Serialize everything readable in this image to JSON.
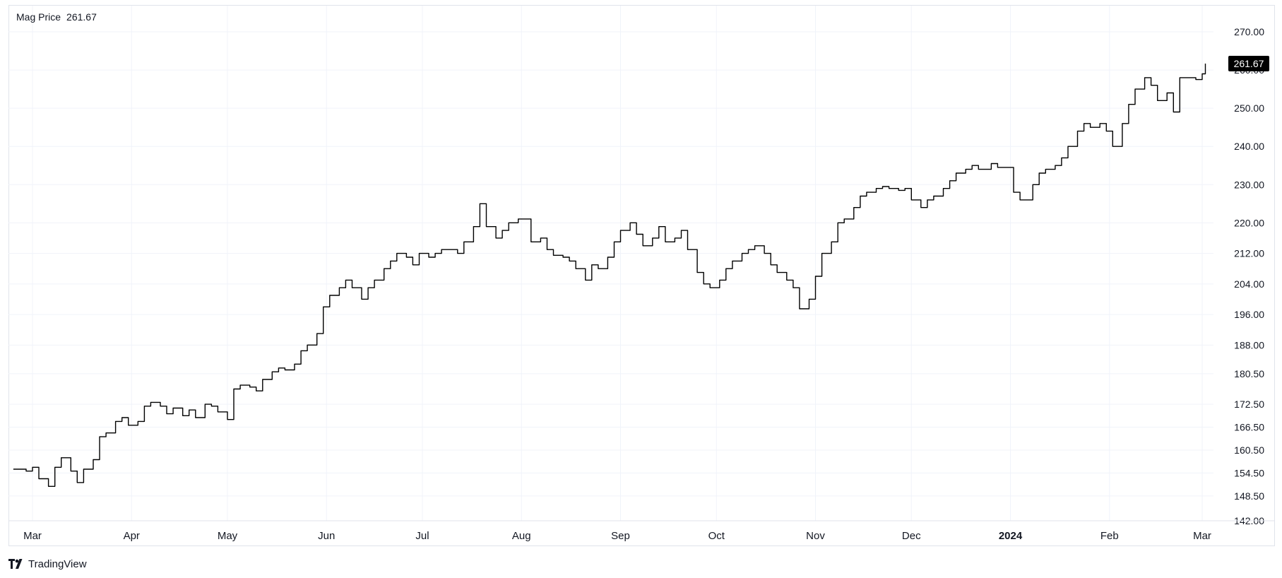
{
  "legend": {
    "name": "Mag Price",
    "value": "261.67"
  },
  "last_price_label": "261.67",
  "brand": {
    "name": "TradingView",
    "icon": "tradingview-logo-icon"
  },
  "colors": {
    "line": "#000000",
    "grid": "#f0f3fa",
    "border": "#e0e3eb",
    "text": "#131722",
    "badge_bg": "#000000",
    "badge_text": "#ffffff"
  },
  "chart_data": {
    "type": "line",
    "title": "Mag Price",
    "xlabel": "",
    "ylabel": "",
    "grid": true,
    "y_axis_side": "right",
    "ylim": [
      142.0,
      274.0
    ],
    "xlim": [
      "2023-02-23",
      "2024-03-07"
    ],
    "y_ticks": [
      "270.00",
      "260.00",
      "250.00",
      "240.00",
      "230.00",
      "220.00",
      "212.00",
      "204.00",
      "196.00",
      "188.00",
      "180.50",
      "172.50",
      "166.50",
      "160.50",
      "154.50",
      "148.50",
      "142.00"
    ],
    "x_ticks": [
      {
        "date": "2023-03-01",
        "label": "Mar",
        "bold": false
      },
      {
        "date": "2023-04-01",
        "label": "Apr",
        "bold": false
      },
      {
        "date": "2023-05-01",
        "label": "May",
        "bold": false
      },
      {
        "date": "2023-06-01",
        "label": "Jun",
        "bold": false
      },
      {
        "date": "2023-07-01",
        "label": "Jul",
        "bold": false
      },
      {
        "date": "2023-08-01",
        "label": "Aug",
        "bold": false
      },
      {
        "date": "2023-09-01",
        "label": "Sep",
        "bold": false
      },
      {
        "date": "2023-10-01",
        "label": "Oct",
        "bold": false
      },
      {
        "date": "2023-11-01",
        "label": "Nov",
        "bold": false
      },
      {
        "date": "2023-12-01",
        "label": "Dec",
        "bold": false
      },
      {
        "date": "2024-01-01",
        "label": "2024",
        "bold": true
      },
      {
        "date": "2024-02-01",
        "label": "Feb",
        "bold": false
      },
      {
        "date": "2024-03-01",
        "label": "Mar",
        "bold": false
      }
    ],
    "series": [
      {
        "points": [
          [
            "2023-02-23",
            155.5
          ],
          [
            "2023-02-27",
            155.0
          ],
          [
            "2023-03-01",
            156.0
          ],
          [
            "2023-03-03",
            153.0
          ],
          [
            "2023-03-06",
            151.0
          ],
          [
            "2023-03-08",
            156.0
          ],
          [
            "2023-03-10",
            158.5
          ],
          [
            "2023-03-13",
            155.0
          ],
          [
            "2023-03-15",
            152.0
          ],
          [
            "2023-03-17",
            155.5
          ],
          [
            "2023-03-20",
            158.0
          ],
          [
            "2023-03-22",
            164.0
          ],
          [
            "2023-03-24",
            165.0
          ],
          [
            "2023-03-27",
            168.0
          ],
          [
            "2023-03-29",
            169.0
          ],
          [
            "2023-03-31",
            167.0
          ],
          [
            "2023-04-03",
            168.0
          ],
          [
            "2023-04-05",
            172.0
          ],
          [
            "2023-04-07",
            173.0
          ],
          [
            "2023-04-10",
            172.0
          ],
          [
            "2023-04-12",
            170.0
          ],
          [
            "2023-04-14",
            171.5
          ],
          [
            "2023-04-17",
            169.5
          ],
          [
            "2023-04-19",
            171.0
          ],
          [
            "2023-04-21",
            169.0
          ],
          [
            "2023-04-24",
            172.5
          ],
          [
            "2023-04-26",
            172.0
          ],
          [
            "2023-04-28",
            170.5
          ],
          [
            "2023-05-01",
            168.5
          ],
          [
            "2023-05-03",
            176.5
          ],
          [
            "2023-05-05",
            177.5
          ],
          [
            "2023-05-08",
            177.0
          ],
          [
            "2023-05-10",
            176.0
          ],
          [
            "2023-05-12",
            179.0
          ],
          [
            "2023-05-15",
            181.0
          ],
          [
            "2023-05-17",
            182.0
          ],
          [
            "2023-05-19",
            181.5
          ],
          [
            "2023-05-22",
            183.0
          ],
          [
            "2023-05-24",
            186.5
          ],
          [
            "2023-05-26",
            188.0
          ],
          [
            "2023-05-29",
            191.0
          ],
          [
            "2023-05-31",
            198.0
          ],
          [
            "2023-06-02",
            201.0
          ],
          [
            "2023-06-05",
            203.0
          ],
          [
            "2023-06-07",
            205.0
          ],
          [
            "2023-06-09",
            203.0
          ],
          [
            "2023-06-12",
            200.0
          ],
          [
            "2023-06-14",
            203.0
          ],
          [
            "2023-06-16",
            205.0
          ],
          [
            "2023-06-19",
            208.0
          ],
          [
            "2023-06-21",
            210.0
          ],
          [
            "2023-06-23",
            212.0
          ],
          [
            "2023-06-26",
            211.0
          ],
          [
            "2023-06-28",
            209.0
          ],
          [
            "2023-06-30",
            212.0
          ],
          [
            "2023-07-03",
            211.0
          ],
          [
            "2023-07-05",
            212.0
          ],
          [
            "2023-07-07",
            213.0
          ],
          [
            "2023-07-10",
            213.0
          ],
          [
            "2023-07-12",
            212.0
          ],
          [
            "2023-07-14",
            215.0
          ],
          [
            "2023-07-17",
            219.0
          ],
          [
            "2023-07-19",
            225.0
          ],
          [
            "2023-07-21",
            219.0
          ],
          [
            "2023-07-24",
            216.0
          ],
          [
            "2023-07-26",
            218.0
          ],
          [
            "2023-07-28",
            220.0
          ],
          [
            "2023-07-31",
            221.0
          ],
          [
            "2023-08-02",
            221.0
          ],
          [
            "2023-08-04",
            215.0
          ],
          [
            "2023-08-07",
            216.0
          ],
          [
            "2023-08-09",
            213.0
          ],
          [
            "2023-08-11",
            211.5
          ],
          [
            "2023-08-14",
            211.0
          ],
          [
            "2023-08-16",
            210.0
          ],
          [
            "2023-08-18",
            208.0
          ],
          [
            "2023-08-21",
            205.0
          ],
          [
            "2023-08-23",
            209.0
          ],
          [
            "2023-08-25",
            208.0
          ],
          [
            "2023-08-28",
            211.0
          ],
          [
            "2023-08-30",
            215.0
          ],
          [
            "2023-09-01",
            218.0
          ],
          [
            "2023-09-04",
            220.0
          ],
          [
            "2023-09-06",
            217.0
          ],
          [
            "2023-09-08",
            214.0
          ],
          [
            "2023-09-11",
            216.0
          ],
          [
            "2023-09-13",
            219.0
          ],
          [
            "2023-09-15",
            215.0
          ],
          [
            "2023-09-18",
            216.0
          ],
          [
            "2023-09-20",
            218.0
          ],
          [
            "2023-09-22",
            213.0
          ],
          [
            "2023-09-25",
            207.0
          ],
          [
            "2023-09-27",
            204.0
          ],
          [
            "2023-09-29",
            203.0
          ],
          [
            "2023-10-02",
            205.0
          ],
          [
            "2023-10-04",
            208.0
          ],
          [
            "2023-10-06",
            210.0
          ],
          [
            "2023-10-09",
            212.0
          ],
          [
            "2023-10-11",
            213.0
          ],
          [
            "2023-10-13",
            214.0
          ],
          [
            "2023-10-16",
            212.0
          ],
          [
            "2023-10-18",
            209.0
          ],
          [
            "2023-10-20",
            207.0
          ],
          [
            "2023-10-23",
            205.0
          ],
          [
            "2023-10-25",
            203.0
          ],
          [
            "2023-10-27",
            197.5
          ],
          [
            "2023-10-30",
            200.0
          ],
          [
            "2023-11-01",
            206.0
          ],
          [
            "2023-11-03",
            212.0
          ],
          [
            "2023-11-06",
            215.0
          ],
          [
            "2023-11-08",
            220.0
          ],
          [
            "2023-11-10",
            221.0
          ],
          [
            "2023-11-13",
            224.0
          ],
          [
            "2023-11-15",
            227.0
          ],
          [
            "2023-11-17",
            228.0
          ],
          [
            "2023-11-20",
            229.0
          ],
          [
            "2023-11-22",
            229.5
          ],
          [
            "2023-11-24",
            229.0
          ],
          [
            "2023-11-27",
            228.5
          ],
          [
            "2023-11-29",
            229.0
          ],
          [
            "2023-12-01",
            226.0
          ],
          [
            "2023-12-04",
            224.0
          ],
          [
            "2023-12-06",
            226.0
          ],
          [
            "2023-12-08",
            227.0
          ],
          [
            "2023-12-11",
            229.0
          ],
          [
            "2023-12-13",
            231.0
          ],
          [
            "2023-12-15",
            233.0
          ],
          [
            "2023-12-18",
            234.0
          ],
          [
            "2023-12-20",
            235.0
          ],
          [
            "2023-12-22",
            234.0
          ],
          [
            "2023-12-26",
            235.5
          ],
          [
            "2023-12-28",
            234.5
          ],
          [
            "2024-01-02",
            228.0
          ],
          [
            "2024-01-04",
            226.0
          ],
          [
            "2024-01-06",
            226.0
          ],
          [
            "2024-01-08",
            230.0
          ],
          [
            "2024-01-10",
            233.0
          ],
          [
            "2024-01-12",
            234.0
          ],
          [
            "2024-01-15",
            235.0
          ],
          [
            "2024-01-17",
            237.0
          ],
          [
            "2024-01-19",
            240.0
          ],
          [
            "2024-01-22",
            244.0
          ],
          [
            "2024-01-24",
            246.0
          ],
          [
            "2024-01-26",
            245.0
          ],
          [
            "2024-01-29",
            246.0
          ],
          [
            "2024-01-31",
            244.0
          ],
          [
            "2024-02-02",
            240.0
          ],
          [
            "2024-02-05",
            246.0
          ],
          [
            "2024-02-07",
            251.0
          ],
          [
            "2024-02-09",
            255.0
          ],
          [
            "2024-02-12",
            258.0
          ],
          [
            "2024-02-14",
            256.0
          ],
          [
            "2024-02-16",
            252.0
          ],
          [
            "2024-02-19",
            254.0
          ],
          [
            "2024-02-21",
            249.0
          ],
          [
            "2024-02-23",
            258.0
          ],
          [
            "2024-02-26",
            258.0
          ],
          [
            "2024-02-28",
            257.5
          ],
          [
            "2024-03-01",
            259.0
          ],
          [
            "2024-03-02",
            261.67
          ]
        ]
      }
    ]
  }
}
